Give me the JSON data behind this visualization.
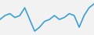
{
  "values": [
    4,
    5,
    5.5,
    4.5,
    5,
    7,
    4,
    1,
    2,
    3.5,
    4,
    5,
    4,
    4.5,
    5.5,
    5,
    2,
    5,
    7,
    8
  ],
  "line_color": "#3a9fd4",
  "linewidth": 1.2,
  "background_color": "#f2f2f2",
  "ylim": [
    0,
    9
  ],
  "xlim": [
    0,
    19
  ]
}
